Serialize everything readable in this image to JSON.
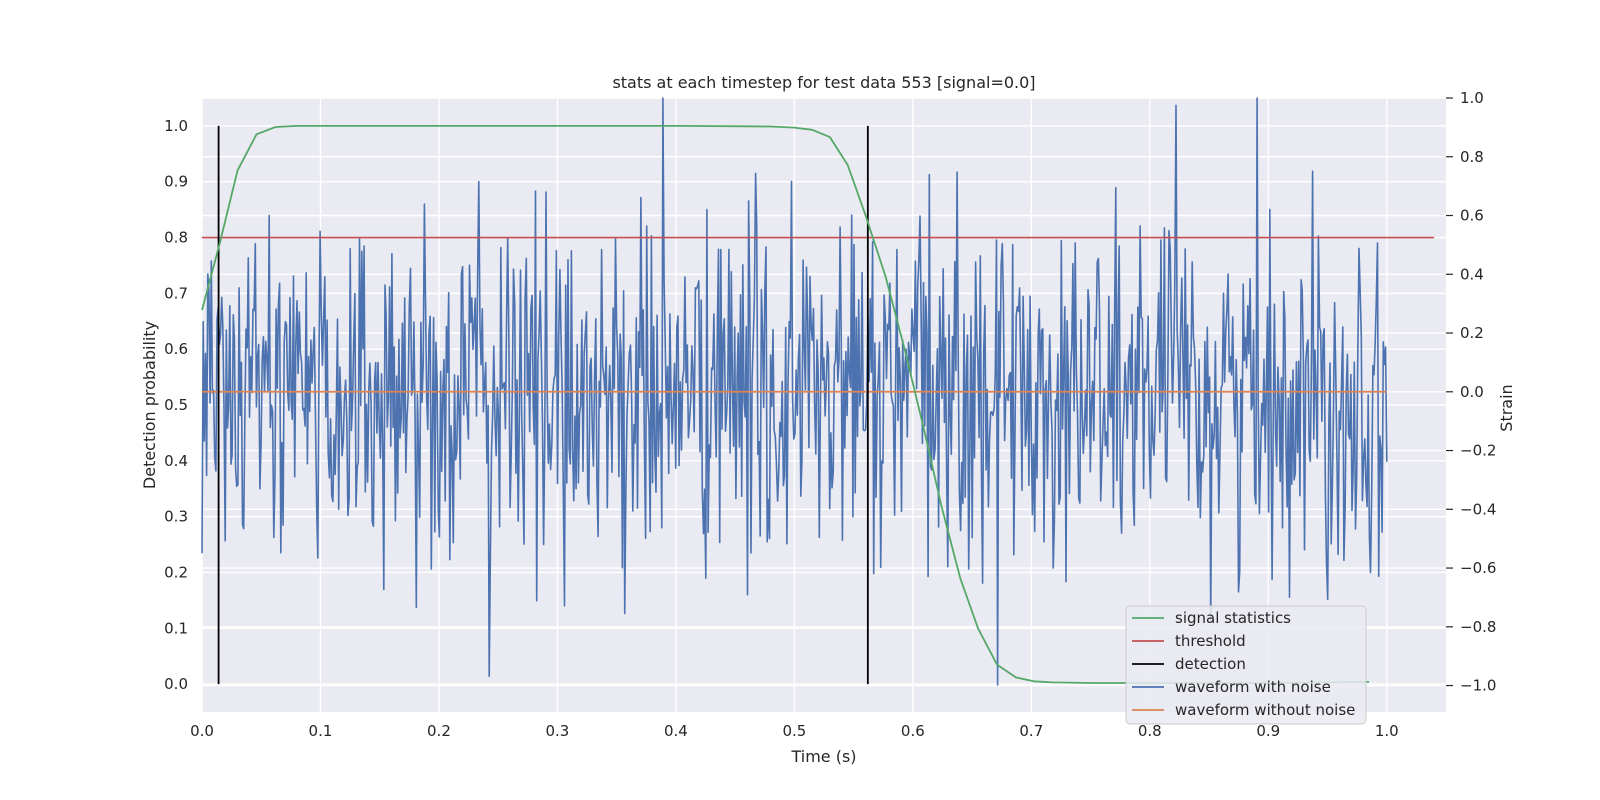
{
  "chart_data": {
    "type": "line",
    "title": "stats at each timestep for test data 553 [signal=0.0]",
    "xlabel": "Time (s)",
    "ylabel": "Detection probability",
    "y2label": "Strain",
    "xlim": [
      0.0,
      1.05
    ],
    "ylim": [
      -0.05,
      1.05
    ],
    "y2lim": [
      -1.09,
      1.0
    ],
    "xticks": [
      "0.0",
      "0.1",
      "0.2",
      "0.3",
      "0.4",
      "0.5",
      "0.6",
      "0.7",
      "0.8",
      "0.9",
      "1.0"
    ],
    "yticks": [
      "0.0",
      "0.1",
      "0.2",
      "0.3",
      "0.4",
      "0.5",
      "0.6",
      "0.7",
      "0.8",
      "0.9",
      "1.0"
    ],
    "y2ticks": [
      "−1.0",
      "−0.8",
      "−0.6",
      "−0.4",
      "−0.2",
      "0.0",
      "0.2",
      "0.4",
      "0.6",
      "0.8",
      "1.0"
    ],
    "grid": true,
    "legend_position": "bottom-right",
    "colors": {
      "signal_statistics": "#55a868",
      "threshold": "#c44e52",
      "detection": "#000000",
      "waveform_with_noise": "#4c72b0",
      "waveform_without_noise": "#dd8452",
      "background": "#eaeaf2",
      "grid": "#ffffff"
    },
    "series": [
      {
        "name": "signal statistics",
        "axis": "left",
        "x": [
          0.0,
          0.015,
          0.03,
          0.046,
          0.062,
          0.08,
          0.1,
          0.2,
          0.3,
          0.4,
          0.48,
          0.5,
          0.515,
          0.53,
          0.545,
          0.56,
          0.577,
          0.593,
          0.609,
          0.624,
          0.64,
          0.655,
          0.671,
          0.687,
          0.702,
          0.718,
          0.75,
          0.8,
          0.9,
          0.985
        ],
        "y": [
          0.67,
          0.79,
          0.92,
          0.985,
          0.998,
          1.0,
          1.0,
          1.0,
          1.0,
          1.0,
          0.999,
          0.997,
          0.993,
          0.98,
          0.93,
          0.84,
          0.73,
          0.6,
          0.46,
          0.32,
          0.19,
          0.1,
          0.035,
          0.012,
          0.005,
          0.003,
          0.002,
          0.002,
          0.002,
          0.004
        ]
      },
      {
        "name": "threshold",
        "axis": "left",
        "x": [
          0.0,
          1.04
        ],
        "y": [
          0.8,
          0.8
        ]
      },
      {
        "name": "detection",
        "axis": "left",
        "segments": [
          {
            "x": 0.014,
            "y0": 0.0,
            "y1": 1.0
          },
          {
            "x": 0.562,
            "y0": 0.0,
            "y1": 1.0
          }
        ]
      },
      {
        "name": "waveform with noise",
        "axis": "right",
        "x_start": 0.0,
        "x_end": 1.0,
        "n_points": 1024,
        "mean": 0.0,
        "std": 0.3,
        "min": -1.0,
        "max": 1.0
      },
      {
        "name": "waveform without noise",
        "axis": "right",
        "x": [
          0.0,
          1.0
        ],
        "y": [
          0.0,
          0.0
        ]
      }
    ]
  }
}
